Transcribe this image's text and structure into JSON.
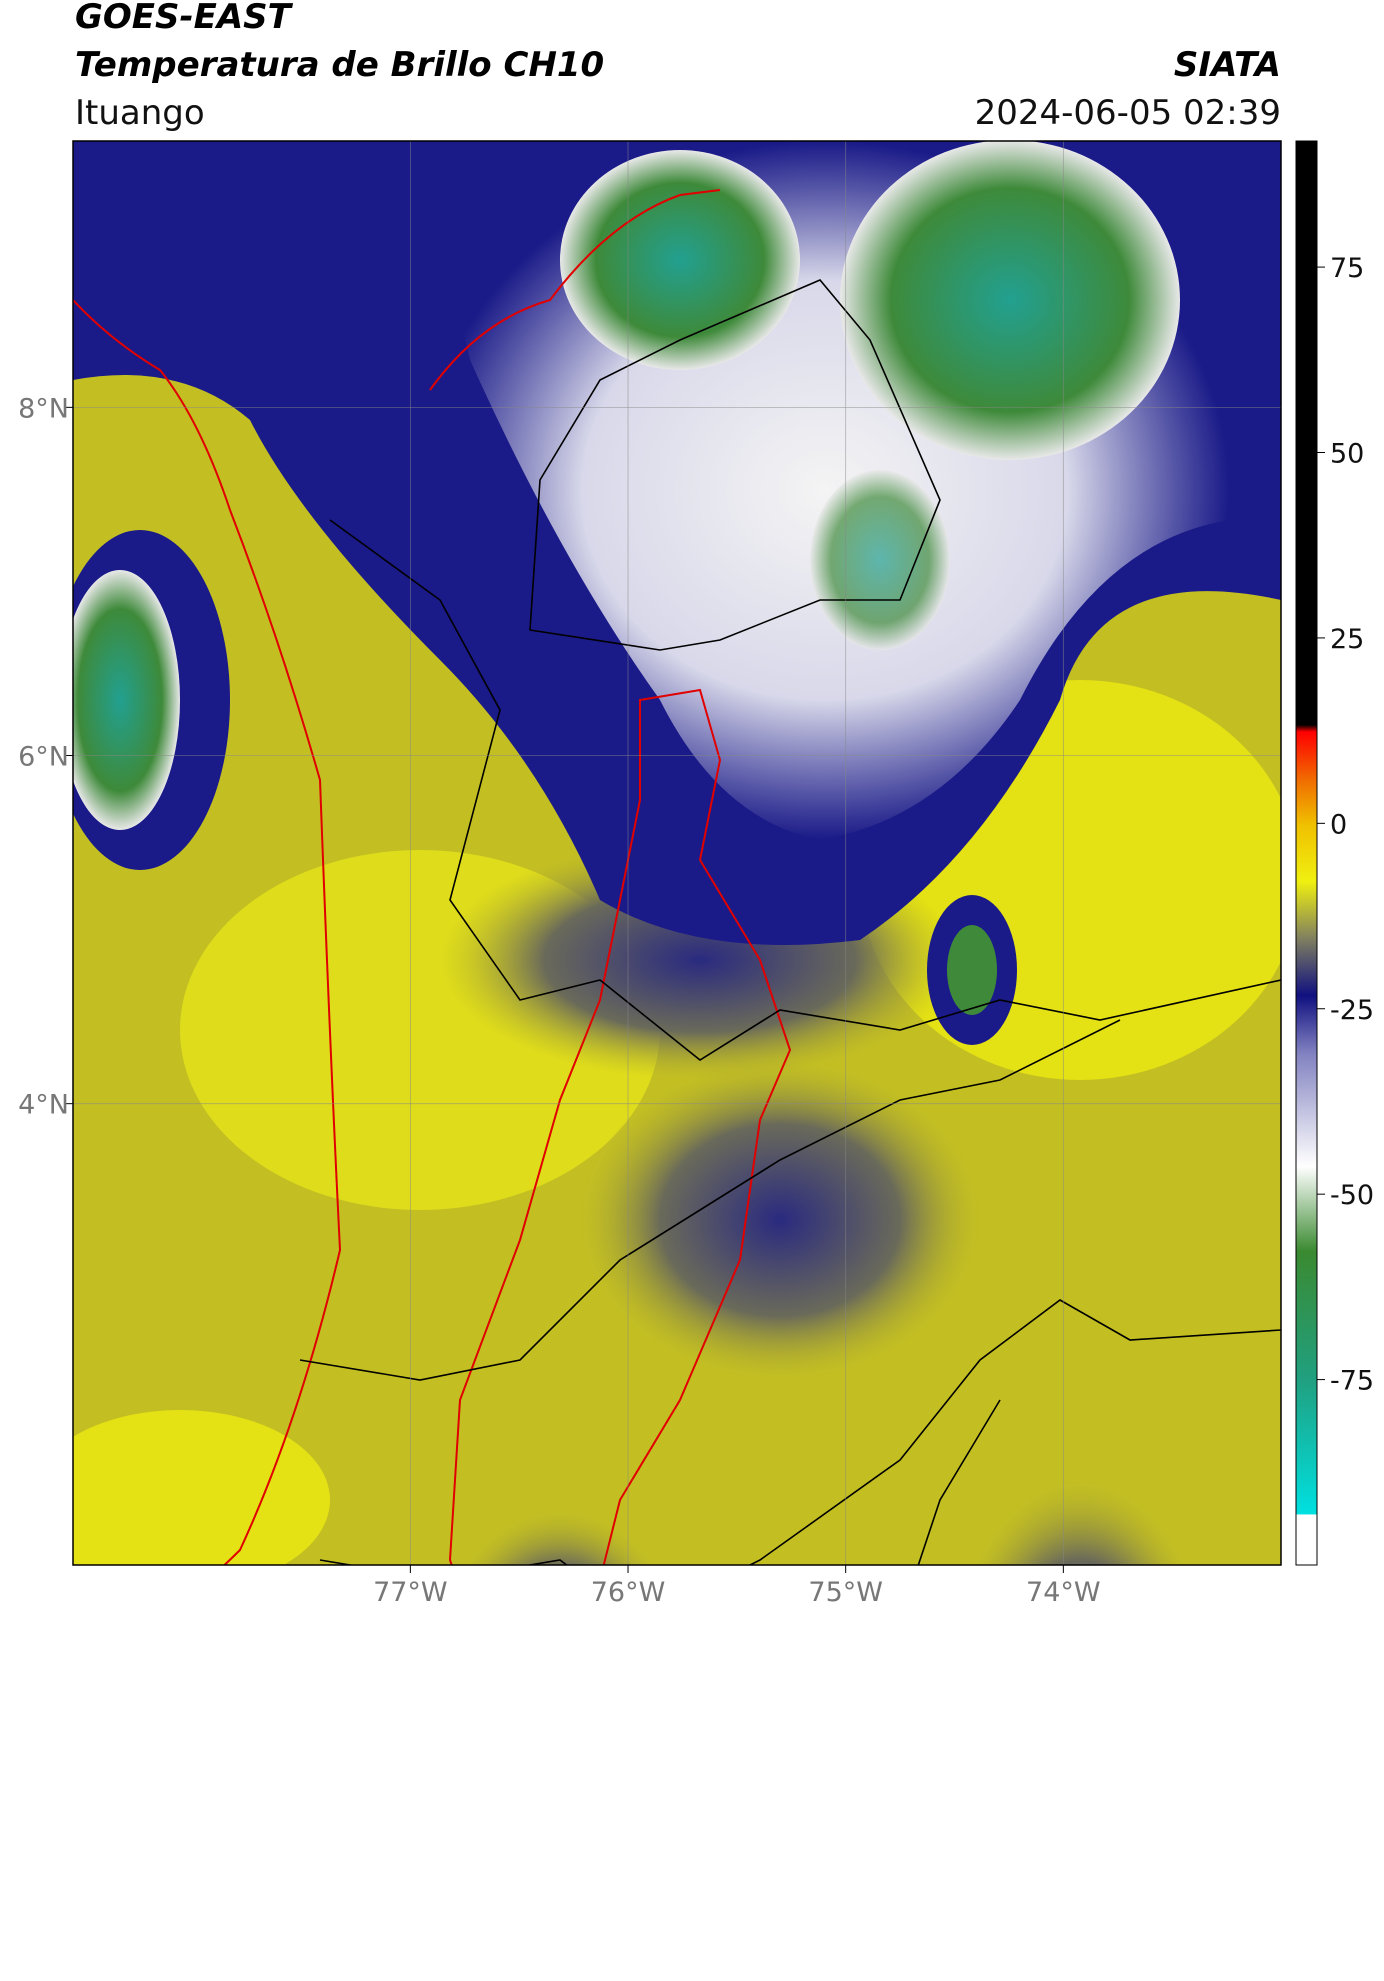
{
  "header": {
    "title": "GOES-EAST",
    "subtitle": "Temperatura de Brillo CH10",
    "source": "SIATA",
    "location": "Ituango",
    "datetime": "2024-06-05 02:39"
  },
  "map": {
    "xlim": [
      -78.55,
      -73.0
    ],
    "ylim": [
      1.35,
      9.53
    ],
    "xticks": [
      {
        "value": -77,
        "label": "77°W"
      },
      {
        "value": -76,
        "label": "76°W"
      },
      {
        "value": -75,
        "label": "75°W"
      },
      {
        "value": -74,
        "label": "74°W"
      }
    ],
    "yticks": [
      {
        "value": 8,
        "label": "8°N"
      },
      {
        "value": 6,
        "label": "6°N"
      },
      {
        "value": 4,
        "label": "4°N"
      }
    ],
    "grid": true
  },
  "colorbar": {
    "lim": [
      -100,
      92
    ],
    "ticks": [
      75,
      50,
      25,
      0,
      -25,
      -50,
      -75
    ]
  }
}
